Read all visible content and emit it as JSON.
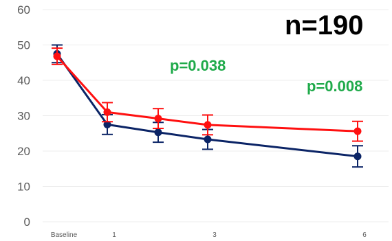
{
  "chart_data": {
    "type": "line",
    "x": [
      0,
      1,
      2,
      3,
      6
    ],
    "x_tick_labels": [
      {
        "x": 0,
        "label": "Baseline"
      },
      {
        "x": 1,
        "label": "1"
      },
      {
        "x": 3,
        "label": "3"
      },
      {
        "x": 6,
        "label": "6"
      }
    ],
    "y_ticks": [
      "0",
      "10",
      "20",
      "30",
      "40",
      "50",
      "60"
    ],
    "ylim": [
      0,
      60
    ],
    "grid": true,
    "series": [
      {
        "color": "#0b2466",
        "values": [
          47.5,
          27.5,
          25.3,
          23.3,
          18.5
        ],
        "errors": [
          2.5,
          2.8,
          2.8,
          2.8,
          3.0
        ]
      },
      {
        "color": "#ff1010",
        "values": [
          46.8,
          31.0,
          29.2,
          27.4,
          25.6
        ],
        "errors": [
          2.3,
          2.7,
          2.8,
          2.8,
          2.8
        ]
      }
    ],
    "annotations": [
      {
        "text": "p=0.038"
      },
      {
        "text": "p=0.008"
      },
      {
        "text": "n=190"
      }
    ]
  }
}
